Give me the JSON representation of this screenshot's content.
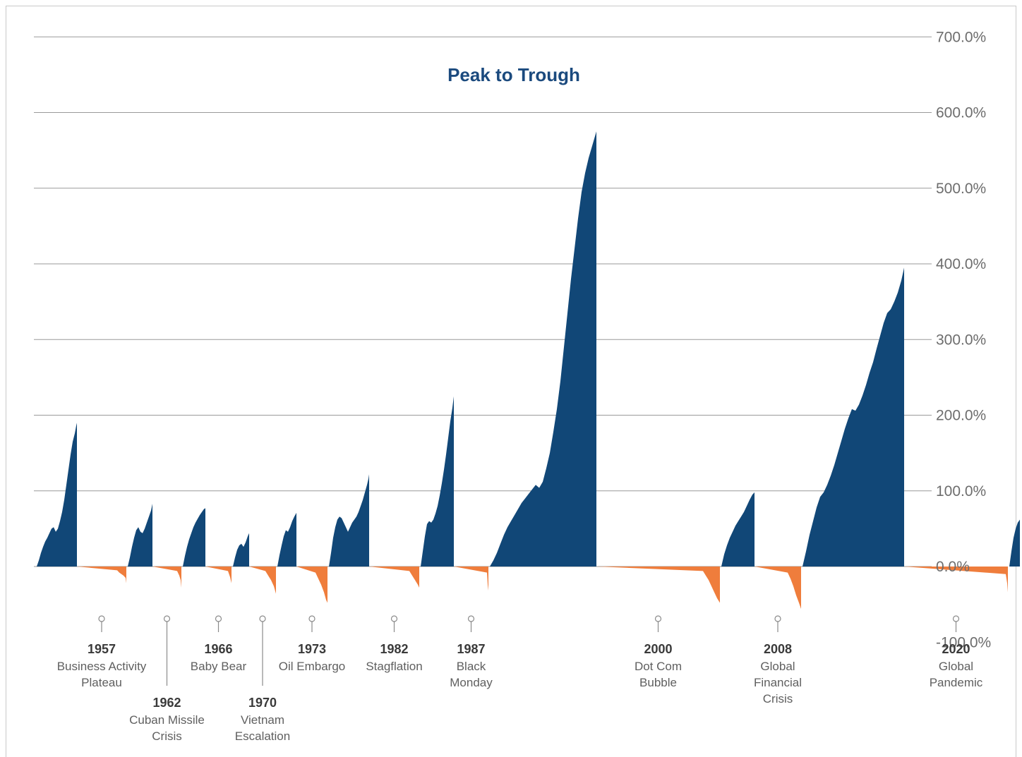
{
  "chart_data": {
    "type": "area",
    "title": "Peak to Trough",
    "xlabel": "",
    "ylabel": "",
    "ylim": [
      -100,
      700
    ],
    "y_ticks": [
      "700.0%",
      "600.0%",
      "500.0%",
      "400.0%",
      "300.0%",
      "200.0%",
      "100.0%",
      "0.0%",
      "-100.0%"
    ],
    "y_tick_values": [
      700,
      600,
      500,
      400,
      300,
      200,
      100,
      0,
      -100
    ],
    "grid": true,
    "colors": {
      "bull": "#114777",
      "bear": "#ef7d3c",
      "title": "#1b4a7e"
    },
    "series": [
      {
        "phase": "bull",
        "points": [
          [
            0,
            0
          ],
          [
            3,
            8
          ],
          [
            6,
            18
          ],
          [
            9,
            26
          ],
          [
            12,
            33
          ],
          [
            15,
            38
          ],
          [
            18,
            44
          ],
          [
            21,
            50
          ],
          [
            24,
            52
          ],
          [
            27,
            46
          ],
          [
            30,
            50
          ],
          [
            33,
            60
          ],
          [
            36,
            72
          ],
          [
            39,
            88
          ],
          [
            42,
            108
          ],
          [
            45,
            128
          ],
          [
            48,
            148
          ],
          [
            51,
            165
          ],
          [
            54,
            176
          ],
          [
            56,
            186
          ],
          [
            57,
            190
          ]
        ]
      },
      {
        "phase": "bear",
        "points": [
          [
            57,
            -5
          ],
          [
            60,
            -8
          ],
          [
            63,
            -10
          ],
          [
            66,
            -12
          ],
          [
            69,
            -15
          ],
          [
            70,
            -22
          ]
        ]
      },
      {
        "phase": "bull",
        "points": [
          [
            0,
            0
          ],
          [
            3,
            12
          ],
          [
            6,
            26
          ],
          [
            9,
            38
          ],
          [
            12,
            48
          ],
          [
            15,
            52
          ],
          [
            18,
            46
          ],
          [
            21,
            44
          ],
          [
            24,
            50
          ],
          [
            27,
            58
          ],
          [
            30,
            66
          ],
          [
            33,
            74
          ],
          [
            35,
            83
          ]
        ]
      },
      {
        "phase": "bear",
        "points": [
          [
            35,
            -6
          ],
          [
            38,
            -12
          ],
          [
            40,
            -18
          ],
          [
            41,
            -28
          ]
        ]
      },
      {
        "phase": "bull",
        "points": [
          [
            0,
            0
          ],
          [
            3,
            14
          ],
          [
            6,
            26
          ],
          [
            9,
            36
          ],
          [
            12,
            44
          ],
          [
            15,
            52
          ],
          [
            18,
            58
          ],
          [
            21,
            63
          ],
          [
            24,
            68
          ],
          [
            27,
            72
          ],
          [
            30,
            76
          ],
          [
            32,
            77
          ]
        ]
      },
      {
        "phase": "bear",
        "points": [
          [
            32,
            -6
          ],
          [
            35,
            -14
          ],
          [
            37,
            -22
          ]
        ]
      },
      {
        "phase": "bull",
        "points": [
          [
            0,
            0
          ],
          [
            3,
            12
          ],
          [
            6,
            22
          ],
          [
            9,
            28
          ],
          [
            12,
            30
          ],
          [
            15,
            26
          ],
          [
            18,
            32
          ],
          [
            21,
            40
          ],
          [
            23,
            44
          ]
        ]
      },
      {
        "phase": "bear",
        "points": [
          [
            23,
            -6
          ],
          [
            27,
            -12
          ],
          [
            31,
            -18
          ],
          [
            35,
            -26
          ],
          [
            38,
            -36
          ]
        ]
      },
      {
        "phase": "bull",
        "points": [
          [
            0,
            0
          ],
          [
            3,
            15
          ],
          [
            6,
            28
          ],
          [
            9,
            40
          ],
          [
            12,
            48
          ],
          [
            15,
            46
          ],
          [
            18,
            52
          ],
          [
            21,
            60
          ],
          [
            24,
            66
          ],
          [
            27,
            71
          ]
        ]
      },
      {
        "phase": "bear",
        "points": [
          [
            27,
            -8
          ],
          [
            31,
            -16
          ],
          [
            35,
            -24
          ],
          [
            39,
            -34
          ],
          [
            42,
            -44
          ],
          [
            44,
            -48
          ]
        ]
      },
      {
        "phase": "bull",
        "points": [
          [
            0,
            0
          ],
          [
            3,
            18
          ],
          [
            6,
            38
          ],
          [
            9,
            52
          ],
          [
            12,
            62
          ],
          [
            15,
            66
          ],
          [
            18,
            64
          ],
          [
            21,
            58
          ],
          [
            24,
            52
          ],
          [
            27,
            46
          ],
          [
            30,
            52
          ],
          [
            33,
            58
          ],
          [
            36,
            62
          ],
          [
            39,
            66
          ],
          [
            42,
            72
          ],
          [
            45,
            80
          ],
          [
            48,
            88
          ],
          [
            51,
            98
          ],
          [
            54,
            108
          ],
          [
            56,
            116
          ],
          [
            57,
            122
          ]
        ]
      },
      {
        "phase": "bear",
        "points": [
          [
            57,
            -6
          ],
          [
            61,
            -12
          ],
          [
            65,
            -18
          ],
          [
            69,
            -24
          ],
          [
            71,
            -28
          ]
        ]
      },
      {
        "phase": "bull",
        "points": [
          [
            0,
            0
          ],
          [
            3,
            20
          ],
          [
            6,
            40
          ],
          [
            9,
            56
          ],
          [
            12,
            60
          ],
          [
            15,
            58
          ],
          [
            18,
            62
          ],
          [
            21,
            70
          ],
          [
            24,
            80
          ],
          [
            27,
            94
          ],
          [
            30,
            110
          ],
          [
            33,
            128
          ],
          [
            36,
            148
          ],
          [
            39,
            170
          ],
          [
            42,
            192
          ],
          [
            45,
            210
          ],
          [
            47,
            225
          ]
        ]
      },
      {
        "phase": "bear",
        "points": [
          [
            47,
            -8
          ],
          [
            48,
            -24
          ],
          [
            49,
            -32
          ]
        ]
      },
      {
        "phase": "bull",
        "points": [
          [
            0,
            0
          ],
          [
            5,
            8
          ],
          [
            10,
            18
          ],
          [
            15,
            30
          ],
          [
            20,
            42
          ],
          [
            25,
            52
          ],
          [
            30,
            60
          ],
          [
            35,
            68
          ],
          [
            40,
            76
          ],
          [
            45,
            84
          ],
          [
            50,
            90
          ],
          [
            55,
            96
          ],
          [
            60,
            102
          ],
          [
            65,
            108
          ],
          [
            70,
            104
          ],
          [
            75,
            112
          ],
          [
            80,
            130
          ],
          [
            85,
            150
          ],
          [
            90,
            178
          ],
          [
            95,
            208
          ],
          [
            100,
            245
          ],
          [
            105,
            290
          ],
          [
            110,
            335
          ],
          [
            115,
            380
          ],
          [
            120,
            420
          ],
          [
            125,
            460
          ],
          [
            130,
            495
          ],
          [
            135,
            520
          ],
          [
            140,
            540
          ],
          [
            145,
            556
          ],
          [
            151,
            575
          ]
        ]
      },
      {
        "phase": "bear",
        "points": [
          [
            151,
            -6
          ],
          [
            155,
            -12
          ],
          [
            159,
            -18
          ],
          [
            163,
            -26
          ],
          [
            167,
            -34
          ],
          [
            171,
            -42
          ],
          [
            175,
            -48
          ]
        ]
      },
      {
        "phase": "bull",
        "points": [
          [
            0,
            0
          ],
          [
            4,
            16
          ],
          [
            8,
            28
          ],
          [
            12,
            38
          ],
          [
            16,
            46
          ],
          [
            20,
            54
          ],
          [
            24,
            60
          ],
          [
            28,
            66
          ],
          [
            32,
            72
          ],
          [
            36,
            80
          ],
          [
            40,
            88
          ],
          [
            44,
            95
          ],
          [
            47,
            98
          ]
        ]
      },
      {
        "phase": "bear",
        "points": [
          [
            47,
            -8
          ],
          [
            51,
            -16
          ],
          [
            55,
            -26
          ],
          [
            59,
            -38
          ],
          [
            63,
            -48
          ],
          [
            66,
            -56
          ]
        ]
      },
      {
        "phase": "bull",
        "points": [
          [
            0,
            0
          ],
          [
            5,
            20
          ],
          [
            10,
            42
          ],
          [
            15,
            60
          ],
          [
            20,
            78
          ],
          [
            25,
            92
          ],
          [
            30,
            98
          ],
          [
            35,
            108
          ],
          [
            40,
            120
          ],
          [
            45,
            134
          ],
          [
            50,
            150
          ],
          [
            55,
            166
          ],
          [
            60,
            182
          ],
          [
            65,
            196
          ],
          [
            70,
            208
          ],
          [
            75,
            206
          ],
          [
            80,
            214
          ],
          [
            85,
            226
          ],
          [
            90,
            240
          ],
          [
            95,
            256
          ],
          [
            100,
            270
          ],
          [
            105,
            288
          ],
          [
            110,
            305
          ],
          [
            115,
            322
          ],
          [
            120,
            335
          ],
          [
            125,
            340
          ],
          [
            130,
            350
          ],
          [
            135,
            362
          ],
          [
            140,
            378
          ],
          [
            144,
            395
          ]
        ]
      },
      {
        "phase": "bear",
        "points": [
          [
            144,
            -10
          ],
          [
            146,
            -22
          ],
          [
            147,
            -34
          ]
        ]
      },
      {
        "phase": "bull",
        "points": [
          [
            0,
            0
          ],
          [
            3,
            20
          ],
          [
            6,
            38
          ],
          [
            9,
            50
          ],
          [
            12,
            58
          ],
          [
            15,
            62
          ]
        ]
      }
    ],
    "events": [
      {
        "year": "1957",
        "lines": [
          "Business Activity",
          "Plateau"
        ]
      },
      {
        "year": "1962",
        "lines": [
          "Cuban Missile",
          "Crisis"
        ]
      },
      {
        "year": "1966",
        "lines": [
          "Baby Bear"
        ]
      },
      {
        "year": "1970",
        "lines": [
          "Vietnam",
          "Escalation"
        ]
      },
      {
        "year": "1973",
        "lines": [
          "Oil Embargo"
        ]
      },
      {
        "year": "1982",
        "lines": [
          "Stagflation"
        ]
      },
      {
        "year": "1987",
        "lines": [
          "Black",
          "Monday"
        ]
      },
      {
        "year": "2000",
        "lines": [
          "Dot Com",
          "Bubble"
        ]
      },
      {
        "year": "2008",
        "lines": [
          "Global",
          "Financial",
          "Crisis"
        ]
      },
      {
        "year": "2020",
        "lines": [
          "Global",
          "Pandemic"
        ]
      }
    ]
  }
}
